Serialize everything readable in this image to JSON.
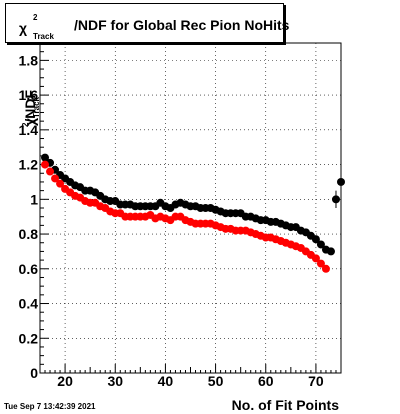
{
  "title": {
    "chi": "χ",
    "sup": "2",
    "sub": "Track",
    "text": "/NDF for Global Rec Pion NoHits"
  },
  "ylabel": {
    "chi": "χ",
    "sup": "2",
    "sub": "Track",
    "rest": "/NDF"
  },
  "xlabel": "No. of Fit Points",
  "timestamp": "Tue Sep  7 13:42:39 2021",
  "chart_data": {
    "type": "scatter",
    "title": "χ²Track/NDF for Global Rec Pion NoHits",
    "xlabel": "No. of Fit Points",
    "ylabel": "χ²Track/NDF",
    "xlim": [
      15,
      75
    ],
    "ylim": [
      0,
      1.9
    ],
    "grid": true,
    "x_ticks": [
      20,
      30,
      40,
      50,
      60,
      70
    ],
    "y_ticks": [
      0,
      0.2,
      0.4,
      0.6,
      0.8,
      1,
      1.2,
      1.4,
      1.6,
      1.8
    ],
    "x_tick_labels": [
      "20",
      "30",
      "40",
      "50",
      "60",
      "70"
    ],
    "y_tick_labels": [
      "0",
      "0.2",
      "0.4",
      "0.6",
      "0.8",
      "1",
      "1.2",
      "1.4",
      "1.6",
      "1.8"
    ],
    "series": [
      {
        "color": "#000000",
        "x": [
          16,
          17,
          18,
          19,
          20,
          21,
          22,
          23,
          24,
          25,
          26,
          27,
          28,
          29,
          30,
          31,
          32,
          33,
          34,
          35,
          36,
          37,
          38,
          39,
          40,
          41,
          42,
          43,
          44,
          45,
          46,
          47,
          48,
          49,
          50,
          51,
          52,
          53,
          54,
          55,
          56,
          57,
          58,
          59,
          60,
          61,
          62,
          63,
          64,
          65,
          66,
          67,
          68,
          69,
          70,
          71,
          72,
          73,
          74,
          75
        ],
        "y": [
          1.24,
          1.21,
          1.17,
          1.14,
          1.12,
          1.1,
          1.08,
          1.07,
          1.05,
          1.05,
          1.04,
          1.02,
          1.0,
          0.99,
          0.99,
          0.97,
          0.97,
          0.97,
          0.96,
          0.96,
          0.96,
          0.96,
          0.96,
          0.98,
          0.96,
          0.95,
          0.97,
          0.98,
          0.97,
          0.96,
          0.96,
          0.95,
          0.95,
          0.95,
          0.94,
          0.93,
          0.92,
          0.92,
          0.92,
          0.92,
          0.9,
          0.9,
          0.89,
          0.88,
          0.88,
          0.87,
          0.87,
          0.86,
          0.85,
          0.84,
          0.84,
          0.82,
          0.81,
          0.79,
          0.77,
          0.74,
          0.71,
          0.7,
          1.0,
          1.1
        ],
        "y_err": [
          0,
          0,
          0,
          0,
          0,
          0,
          0,
          0,
          0,
          0,
          0,
          0,
          0,
          0,
          0,
          0,
          0,
          0,
          0,
          0,
          0,
          0,
          0,
          0,
          0,
          0,
          0,
          0,
          0,
          0,
          0,
          0,
          0,
          0,
          0,
          0,
          0,
          0,
          0,
          0,
          0,
          0,
          0,
          0,
          0,
          0,
          0,
          0,
          0,
          0,
          0,
          0,
          0,
          0,
          0,
          0,
          0,
          0,
          0.05,
          0.03
        ]
      },
      {
        "color": "#ff0000",
        "x": [
          16,
          17,
          18,
          19,
          20,
          21,
          22,
          23,
          24,
          25,
          26,
          27,
          28,
          29,
          30,
          31,
          32,
          33,
          34,
          35,
          36,
          37,
          38,
          39,
          40,
          41,
          42,
          43,
          44,
          45,
          46,
          47,
          48,
          49,
          50,
          51,
          52,
          53,
          54,
          55,
          56,
          57,
          58,
          59,
          60,
          61,
          62,
          63,
          64,
          65,
          66,
          67,
          68,
          69,
          70,
          71,
          72
        ],
        "y": [
          1.2,
          1.16,
          1.12,
          1.09,
          1.06,
          1.04,
          1.02,
          1.01,
          0.99,
          0.98,
          0.98,
          0.96,
          0.95,
          0.93,
          0.92,
          0.92,
          0.9,
          0.9,
          0.9,
          0.9,
          0.9,
          0.91,
          0.89,
          0.9,
          0.89,
          0.88,
          0.9,
          0.9,
          0.88,
          0.87,
          0.86,
          0.86,
          0.86,
          0.86,
          0.85,
          0.84,
          0.83,
          0.83,
          0.82,
          0.82,
          0.82,
          0.81,
          0.8,
          0.79,
          0.78,
          0.78,
          0.77,
          0.76,
          0.75,
          0.74,
          0.73,
          0.72,
          0.7,
          0.68,
          0.66,
          0.63,
          0.6
        ],
        "y_err": []
      }
    ]
  }
}
